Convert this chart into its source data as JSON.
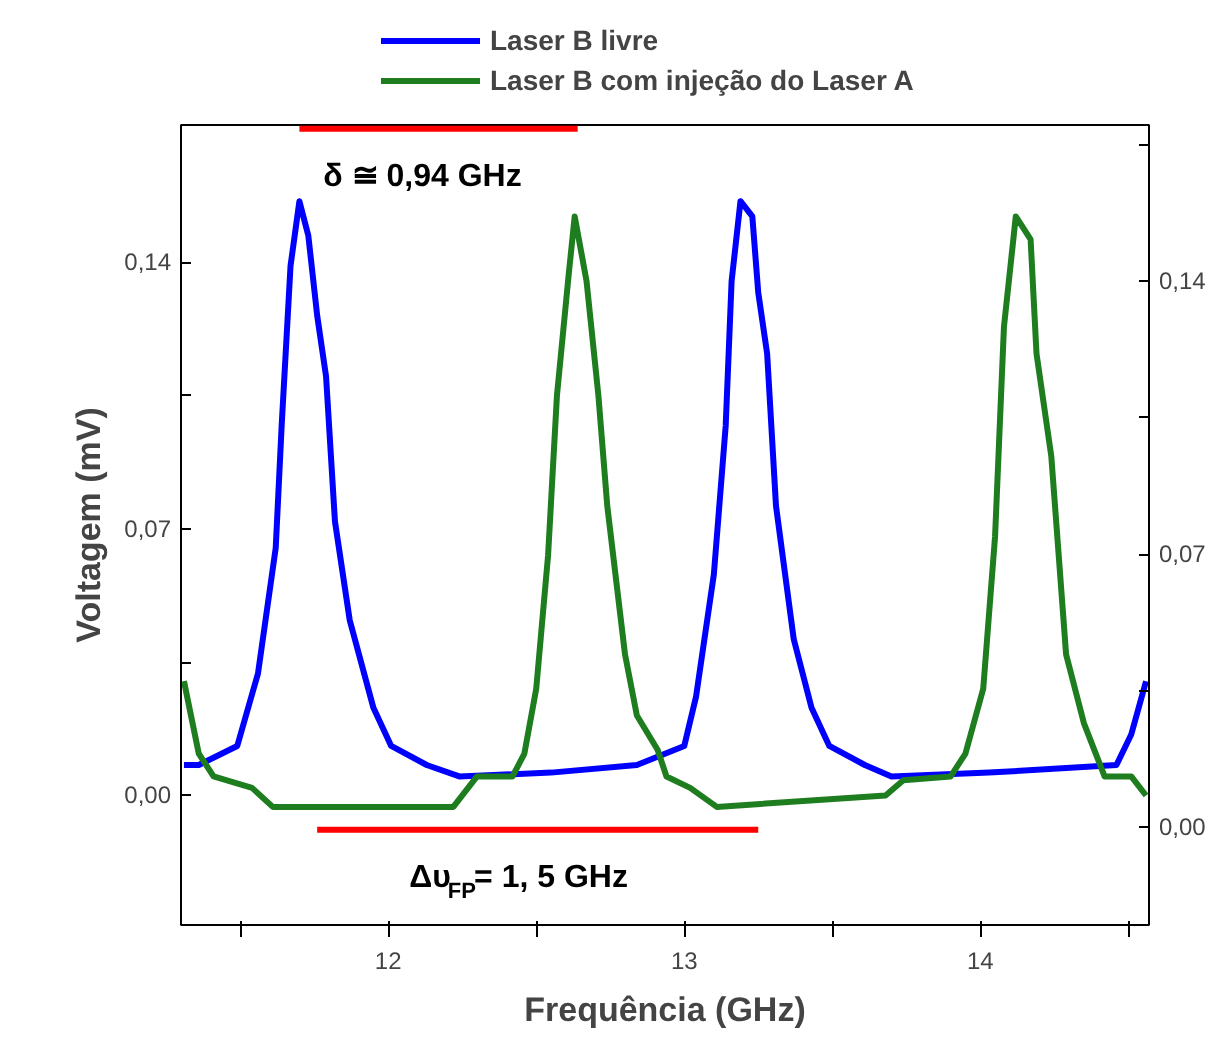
{
  "chart_data": {
    "type": "line",
    "xlabel": "Frequência (GHz)",
    "ylabel": "Voltagem (mV)",
    "xlim": [
      11.3,
      14.57
    ],
    "ylim": [
      -0.034,
      0.176
    ],
    "y2lim": [
      -0.025,
      0.18
    ],
    "xticks": [
      {
        "value": 11.5,
        "label": null
      },
      12,
      {
        "value": 12.5,
        "label": null
      },
      13,
      {
        "value": 13.5,
        "label": null
      },
      14,
      {
        "value": 14.5,
        "label": null
      }
    ],
    "yticks": [
      {
        "value": 0,
        "label": "0,00"
      },
      {
        "value": 0.035,
        "label": null
      },
      {
        "value": 0.07,
        "label": "0,07"
      },
      {
        "value": 0.105,
        "label": null
      },
      {
        "value": 0.14,
        "label": "0,14"
      }
    ],
    "y2ticks": [
      {
        "value": 0,
        "label": "0,00"
      },
      {
        "value": 0.035,
        "label": null
      },
      {
        "value": 0.07,
        "label": "0,07"
      },
      {
        "value": 0.105,
        "label": null
      },
      {
        "value": 0.14,
        "label": "0,14"
      },
      {
        "value": 0.175,
        "label": null
      }
    ],
    "legend": "top",
    "grid": false,
    "series": [
      {
        "name": "Laser B livre",
        "color": "#0000ff",
        "x": [
          11.31,
          11.36,
          11.49,
          11.56,
          11.62,
          11.64,
          11.67,
          11.7,
          11.73,
          11.76,
          11.79,
          11.82,
          11.87,
          11.95,
          12.01,
          12.13,
          12.24,
          12.55,
          12.84,
          13.0,
          13.04,
          13.1,
          13.14,
          13.16,
          13.19,
          13.23,
          13.25,
          13.28,
          13.31,
          13.37,
          13.43,
          13.49,
          13.61,
          13.7,
          14.03,
          14.46,
          14.51,
          14.56
        ],
        "values": [
          0.008,
          0.008,
          0.013,
          0.032,
          0.065,
          0.097,
          0.139,
          0.156,
          0.147,
          0.126,
          0.11,
          0.072,
          0.046,
          0.023,
          0.013,
          0.008,
          0.005,
          0.006,
          0.008,
          0.013,
          0.026,
          0.058,
          0.097,
          0.135,
          0.156,
          0.152,
          0.132,
          0.116,
          0.076,
          0.041,
          0.023,
          0.013,
          0.008,
          0.005,
          0.006,
          0.008,
          0.016,
          0.03
        ]
      },
      {
        "name": "Laser B com injeção do Laser A",
        "color": "#1e7d1e",
        "x": [
          11.31,
          11.36,
          11.41,
          11.54,
          11.61,
          12.22,
          12.3,
          12.42,
          12.46,
          12.5,
          12.54,
          12.57,
          12.61,
          12.63,
          12.67,
          12.71,
          12.74,
          12.8,
          12.84,
          12.91,
          12.94,
          13.02,
          13.11,
          13.68,
          13.74,
          13.9,
          13.95,
          14.01,
          14.05,
          14.08,
          14.12,
          14.17,
          14.19,
          14.24,
          14.29,
          14.35,
          14.42,
          14.51,
          14.56
        ],
        "values": [
          0.03,
          0.011,
          0.005,
          0.002,
          -0.003,
          -0.003,
          0.005,
          0.005,
          0.011,
          0.028,
          0.063,
          0.105,
          0.137,
          0.152,
          0.135,
          0.105,
          0.076,
          0.037,
          0.021,
          0.012,
          0.005,
          0.002,
          -0.003,
          0,
          0.004,
          0.005,
          0.011,
          0.028,
          0.068,
          0.123,
          0.152,
          0.146,
          0.116,
          0.089,
          0.037,
          0.019,
          0.005,
          0.005,
          0
        ]
      },
      {
        "type": "line",
        "color": "#ff0000",
        "x": [
          11.7,
          12.64
        ],
        "values": [
          0.175,
          0.175
        ]
      },
      {
        "type": "line",
        "color": "#ff0000",
        "x": [
          11.76,
          13.25
        ],
        "values": [
          -0.009,
          -0.009
        ]
      }
    ],
    "annotations": [
      "δ ≅ 0,94 GHz",
      "Δυ$_{FP}$= 1, 5 GHz"
    ]
  }
}
